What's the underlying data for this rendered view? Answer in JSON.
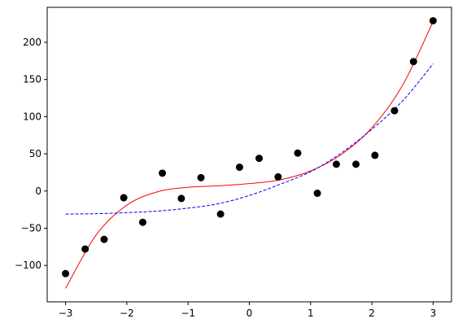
{
  "chart_data": {
    "type": "scatter",
    "title": "",
    "xlabel": "",
    "ylabel": "",
    "xlim": [
      -3.3,
      3.3
    ],
    "ylim": [
      -149,
      247
    ],
    "grid": false,
    "legend": "none",
    "x_ticks": [
      -3,
      -2,
      -1,
      0,
      1,
      2,
      3
    ],
    "x_tick_labels": [
      "−3",
      "−2",
      "−1",
      "0",
      "1",
      "2",
      "3"
    ],
    "y_ticks": [
      -100,
      -50,
      0,
      50,
      100,
      150,
      200
    ],
    "y_tick_labels": [
      "−100",
      "−50",
      "0",
      "50",
      "100",
      "150",
      "200"
    ],
    "points": {
      "color": "#000000",
      "x": [
        -3.0,
        -2.68,
        -2.37,
        -2.05,
        -1.74,
        -1.42,
        -1.11,
        -0.79,
        -0.47,
        -0.16,
        0.16,
        0.47,
        0.79,
        1.11,
        1.42,
        1.74,
        2.05,
        2.37,
        2.68,
        3.0
      ],
      "y": [
        -111,
        -78,
        -65,
        -9,
        -42,
        24,
        -10,
        18,
        -31,
        32,
        44,
        19,
        51,
        -3,
        36,
        36,
        48,
        108,
        174,
        229
      ]
    },
    "series": [
      {
        "style": "solid",
        "color": "#ff0000",
        "x": [
          -3.0,
          -2.5,
          -2.0,
          -1.5,
          -1.0,
          -0.5,
          0.0,
          0.5,
          1.0,
          1.5,
          2.0,
          2.5,
          3.0
        ],
        "y": [
          -131,
          -59,
          -19,
          -1,
          5,
          7,
          10,
          15,
          27,
          49,
          85,
          142,
          228
        ]
      },
      {
        "style": "dashed",
        "color": "#0000ff",
        "x": [
          -3.0,
          -2.5,
          -2.0,
          -1.5,
          -1.0,
          -0.5,
          0.0,
          0.5,
          1.0,
          1.5,
          2.0,
          2.5,
          3.0
        ],
        "y": [
          -31,
          -30.5,
          -29,
          -27,
          -23,
          -17,
          -6,
          9,
          26,
          51,
          83,
          121,
          171
        ]
      }
    ]
  }
}
